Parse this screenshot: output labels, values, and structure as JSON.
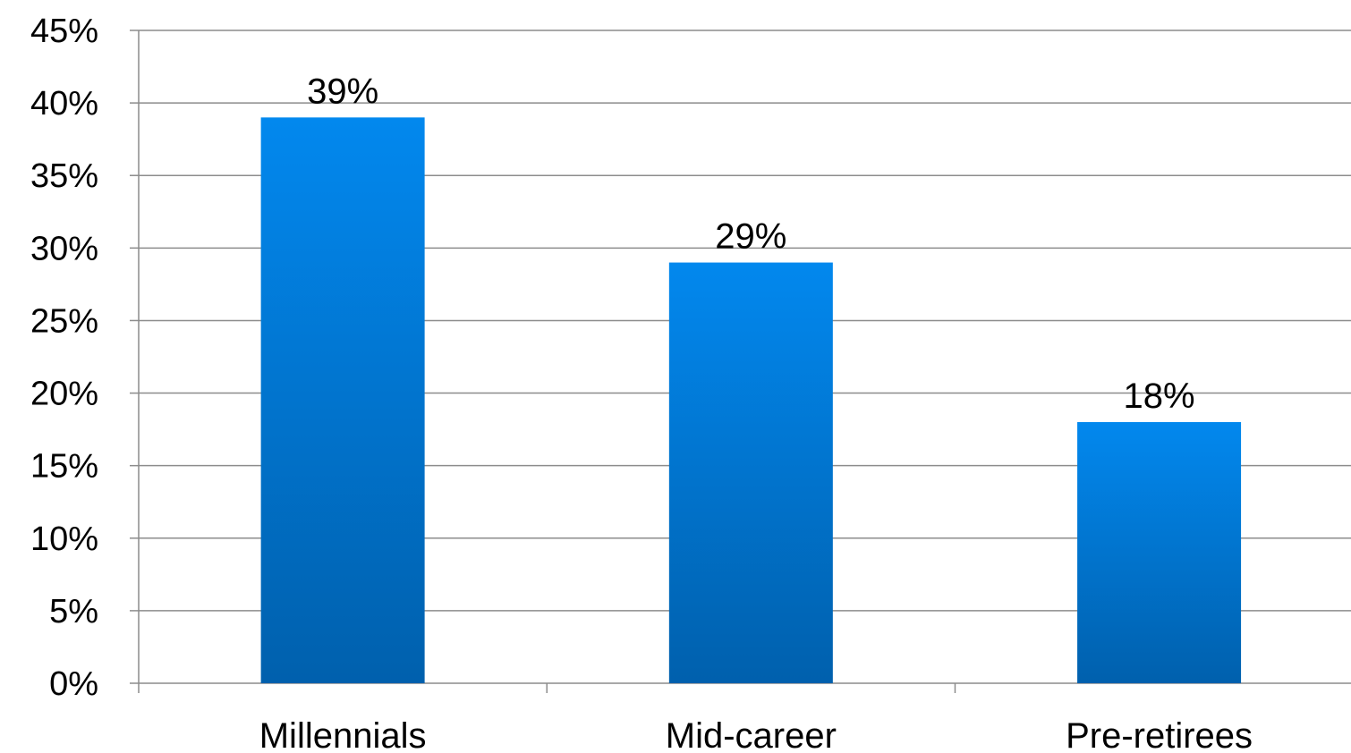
{
  "chart_data": {
    "type": "bar",
    "categories": [
      "Millennials",
      "Mid-career",
      "Pre-retirees"
    ],
    "values": [
      39,
      29,
      18
    ],
    "data_labels": [
      "39%",
      "29%",
      "18%"
    ],
    "y_ticks": [
      0,
      5,
      10,
      15,
      20,
      25,
      30,
      35,
      40,
      45
    ],
    "y_tick_labels": [
      "0%",
      "5%",
      "10%",
      "15%",
      "20%",
      "25%",
      "30%",
      "35%",
      "40%",
      "45%"
    ],
    "ylim": [
      0,
      45
    ],
    "grid": true,
    "legend": "none",
    "title": "",
    "xlabel": "",
    "ylabel": "",
    "colors": {
      "bar_top": "#0288ee",
      "bar_bottom": "#0060ad",
      "grid": "#8c8c8c",
      "axis": "#8c8c8c"
    }
  }
}
